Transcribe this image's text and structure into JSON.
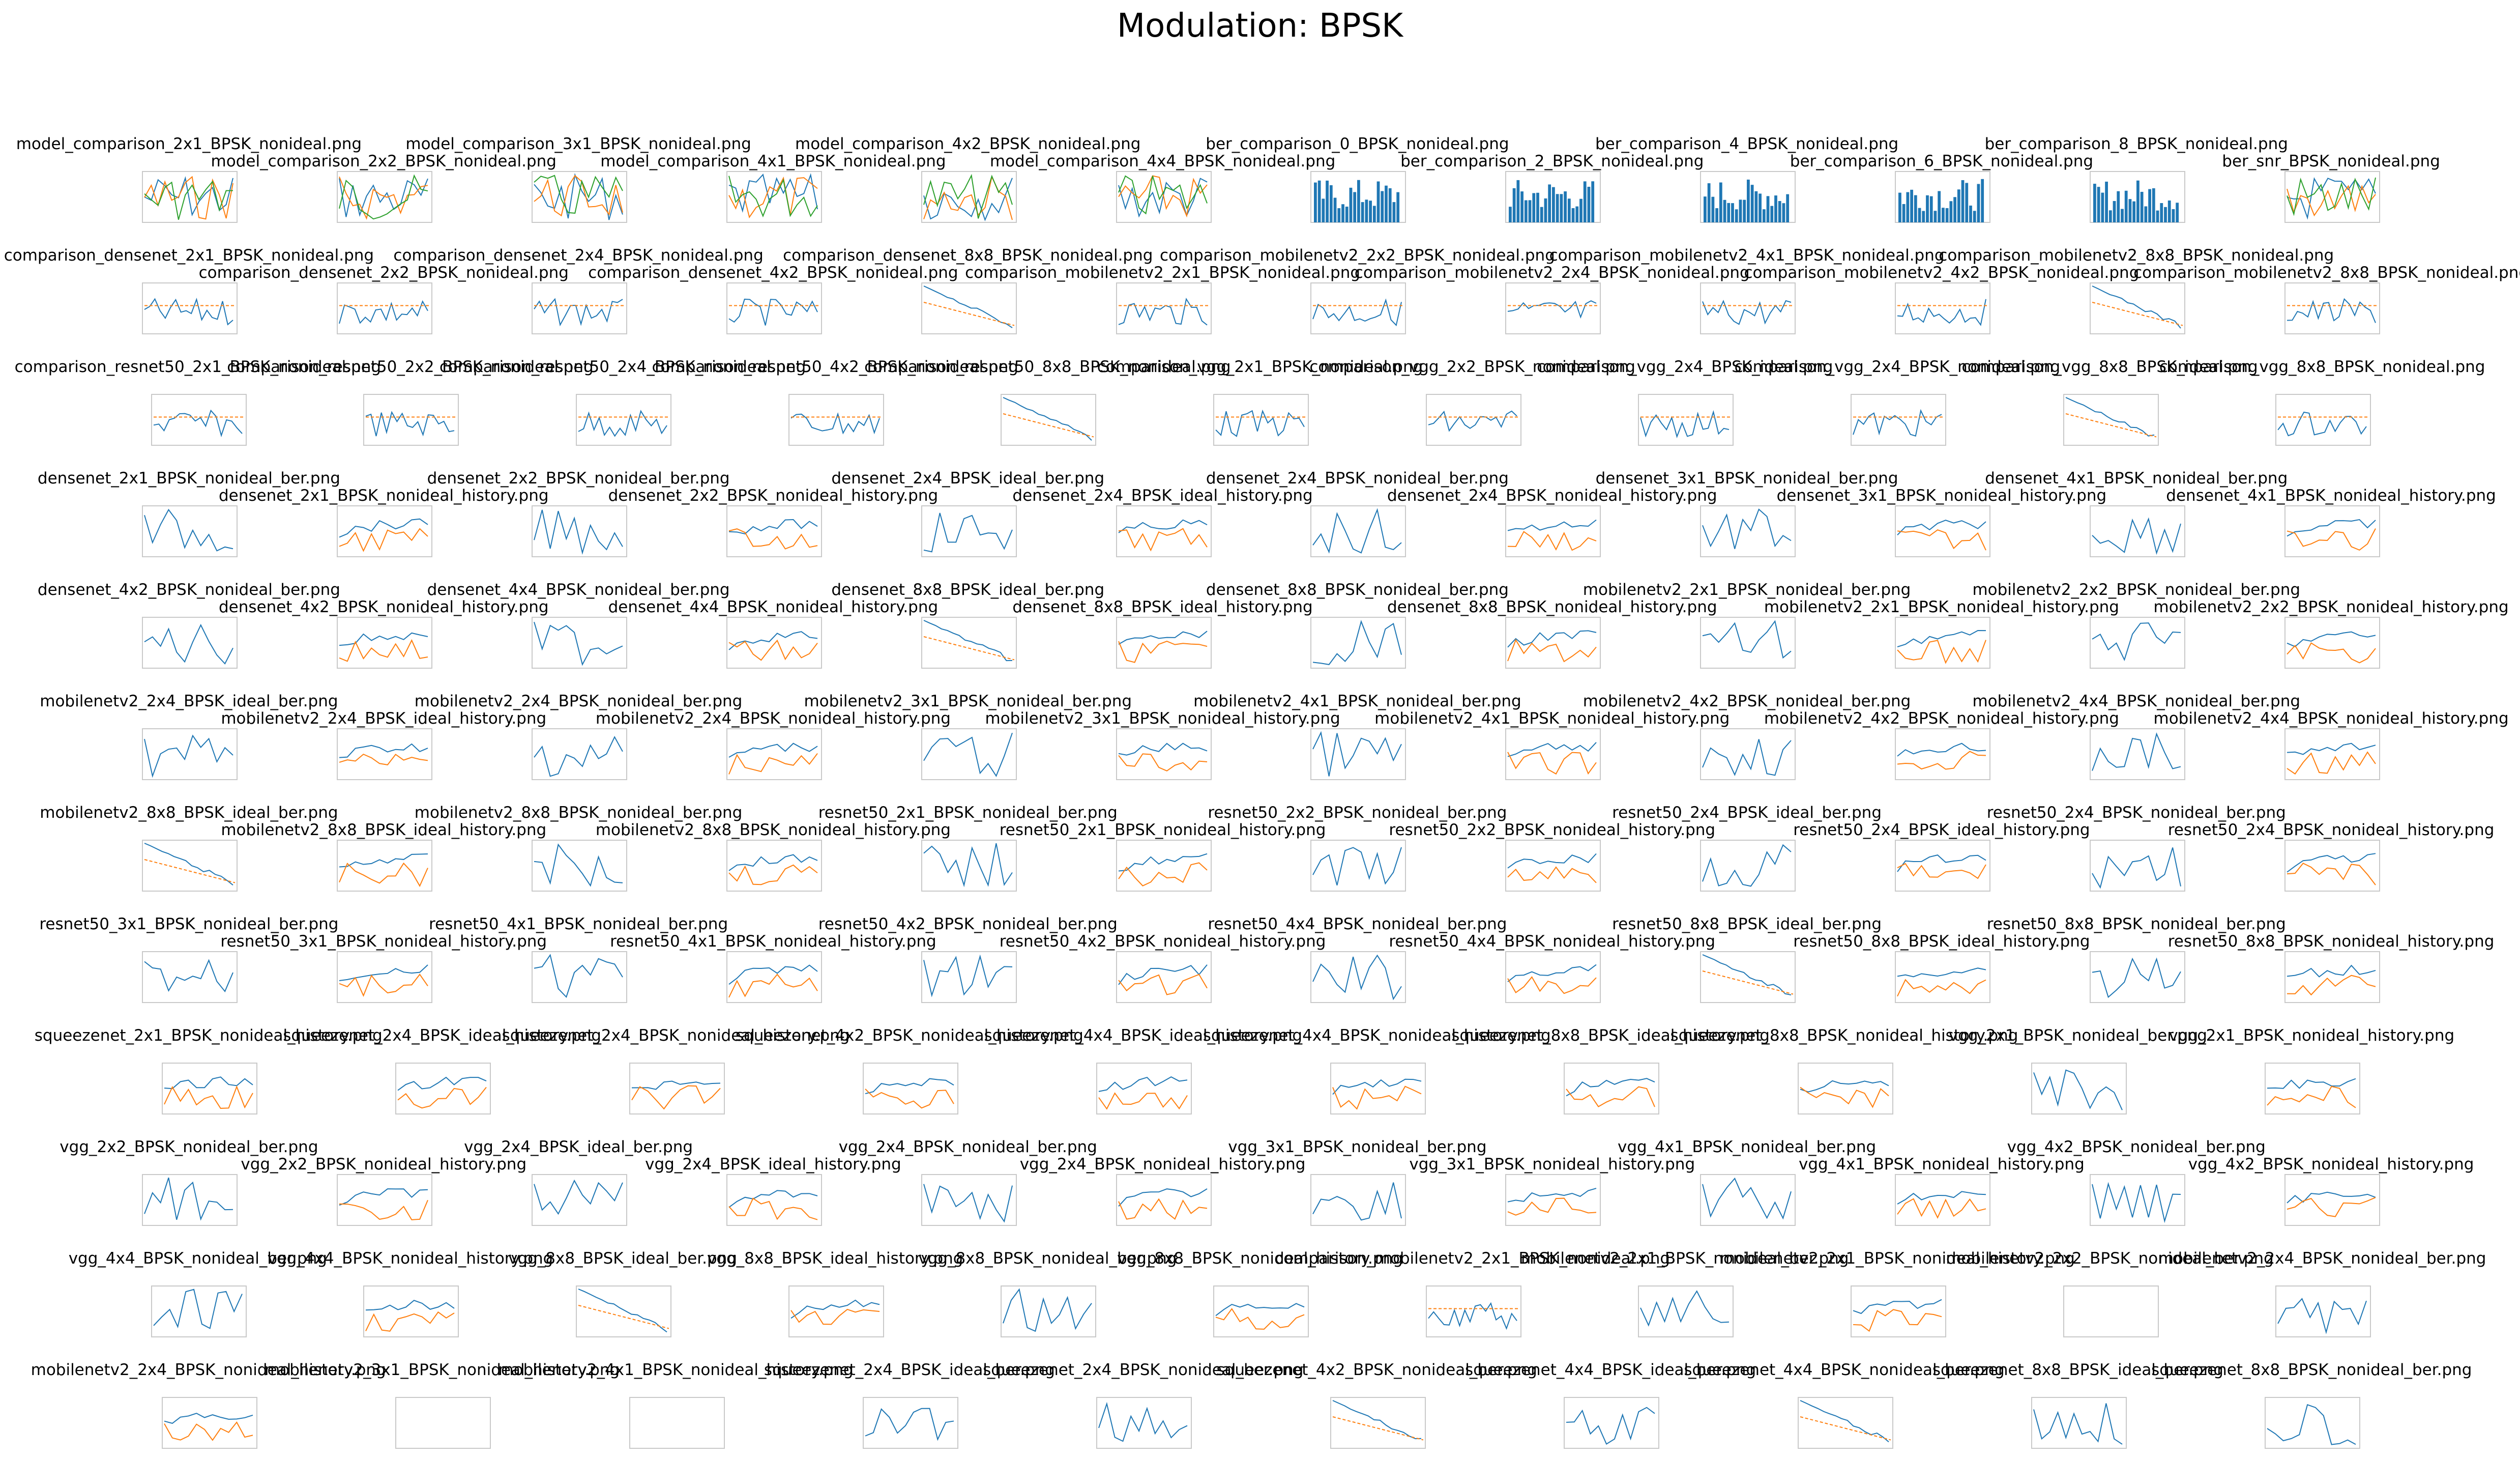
{
  "title": "Modulation: BPSK",
  "rows": [
    {
      "labels": [
        "model_comparison_2x1_BPSK_nonideal.png",
        "model_comparison_2x2_BPSK_nonideal.png",
        "model_comparison_3x1_BPSK_nonideal.png",
        "model_comparison_4x1_BPSK_nonideal.png",
        "model_comparison_4x2_BPSK_nonideal.png",
        "model_comparison_4x4_BPSK_nonideal.png",
        "ber_comparison_0_BPSK_nonideal.png",
        "ber_comparison_2_BPSK_nonideal.png",
        "ber_comparison_4_BPSK_nonideal.png",
        "ber_comparison_6_BPSK_nonideal.png",
        "ber_comparison_8_BPSK_nonideal.png",
        "ber_snr_BPSK_nonideal.png"
      ],
      "thumbs": [
        "multiline",
        "multiline",
        "multiline",
        "multiline",
        "multiline",
        "multiline",
        "bars",
        "bars",
        "bars",
        "bars",
        "bars",
        "multiline"
      ]
    },
    {
      "labels": [
        "comparison_densenet_2x1_BPSK_nonideal.png",
        "comparison_densenet_2x2_BPSK_nonideal.png",
        "comparison_densenet_2x4_BPSK_nonideal.png",
        "comparison_densenet_4x2_BPSK_nonideal.png",
        "comparison_densenet_8x8_BPSK_nonideal.png",
        "comparison_mobilenetv2_2x1_BPSK_nonideal.png",
        "comparison_mobilenetv2_2x2_BPSK_nonideal.png",
        "comparison_mobilenetv2_2x4_BPSK_nonideal.png",
        "comparison_mobilenetv2_4x1_BPSK_nonideal.png",
        "comparison_mobilenetv2_4x2_BPSK_nonideal.png",
        "comparison_mobilenetv2_8x8_BPSK_nonideal.png",
        "comparison_mobilenetv2_8x8_BPSK_nonideal.png"
      ],
      "thumbs": [
        "line",
        "line",
        "line",
        "line",
        "decay",
        "line",
        "line",
        "line",
        "line",
        "line",
        "decay",
        "line"
      ]
    },
    {
      "labels": [
        "comparison_resnet50_2x1_BPSK_nonideal.png",
        "comparison_resnet50_2x2_BPSK_nonideal.png",
        "comparison_resnet50_2x4_BPSK_nonideal.png",
        "comparison_resnet50_4x2_BPSK_nonideal.png",
        "comparison_resnet50_8x8_BPSK_nonideal.png",
        "comparison_vgg_2x1_BPSK_nonideal.png",
        "comparison_vgg_2x2_BPSK_nonideal.png",
        "comparison_vgg_2x4_BPSK_ideal.png",
        "comparison_vgg_2x4_BPSK_nonideal.png",
        "comparison_vgg_8x8_BPSK_ideal.png",
        "comparison_vgg_8x8_BPSK_nonideal.png"
      ],
      "thumbs": [
        "line",
        "line",
        "line",
        "line",
        "decay",
        "line",
        "line",
        "line",
        "line",
        "decay",
        "line"
      ]
    },
    {
      "labels": [
        "densenet_2x1_BPSK_nonideal_ber.png",
        "densenet_2x1_BPSK_nonideal_history.png",
        "densenet_2x2_BPSK_nonideal_ber.png",
        "densenet_2x2_BPSK_nonideal_history.png",
        "densenet_2x4_BPSK_ideal_ber.png",
        "densenet_2x4_BPSK_ideal_history.png",
        "densenet_2x4_BPSK_nonideal_ber.png",
        "densenet_2x4_BPSK_nonideal_history.png",
        "densenet_3x1_BPSK_nonideal_ber.png",
        "densenet_3x1_BPSK_nonideal_history.png",
        "densenet_4x1_BPSK_nonideal_ber.png",
        "densenet_4x1_BPSK_nonideal_history.png"
      ],
      "thumbs": [
        "ber",
        "history",
        "ber",
        "history",
        "ber",
        "history",
        "ber",
        "history",
        "ber",
        "history",
        "ber",
        "history"
      ]
    },
    {
      "labels": [
        "densenet_4x2_BPSK_nonideal_ber.png",
        "densenet_4x2_BPSK_nonideal_history.png",
        "densenet_4x4_BPSK_nonideal_ber.png",
        "densenet_4x4_BPSK_nonideal_history.png",
        "densenet_8x8_BPSK_ideal_ber.png",
        "densenet_8x8_BPSK_ideal_history.png",
        "densenet_8x8_BPSK_nonideal_ber.png",
        "densenet_8x8_BPSK_nonideal_history.png",
        "mobilenetv2_2x1_BPSK_nonideal_ber.png",
        "mobilenetv2_2x1_BPSK_nonideal_history.png",
        "mobilenetv2_2x2_BPSK_nonideal_ber.png",
        "mobilenetv2_2x2_BPSK_nonideal_history.png"
      ],
      "thumbs": [
        "ber",
        "history",
        "ber",
        "history",
        "decay",
        "history",
        "ber",
        "history",
        "ber",
        "history",
        "ber",
        "history"
      ]
    },
    {
      "labels": [
        "mobilenetv2_2x4_BPSK_ideal_ber.png",
        "mobilenetv2_2x4_BPSK_ideal_history.png",
        "mobilenetv2_2x4_BPSK_nonideal_ber.png",
        "mobilenetv2_2x4_BPSK_nonideal_history.png",
        "mobilenetv2_3x1_BPSK_nonideal_ber.png",
        "mobilenetv2_3x1_BPSK_nonideal_history.png",
        "mobilenetv2_4x1_BPSK_nonideal_ber.png",
        "mobilenetv2_4x1_BPSK_nonideal_history.png",
        "mobilenetv2_4x2_BPSK_nonideal_ber.png",
        "mobilenetv2_4x2_BPSK_nonideal_history.png",
        "mobilenetv2_4x4_BPSK_nonideal_ber.png",
        "mobilenetv2_4x4_BPSK_nonideal_history.png"
      ],
      "thumbs": [
        "ber",
        "history",
        "ber",
        "history",
        "ber",
        "history",
        "ber",
        "history",
        "ber",
        "history",
        "ber",
        "history"
      ]
    },
    {
      "labels": [
        "mobilenetv2_8x8_BPSK_ideal_ber.png",
        "mobilenetv2_8x8_BPSK_ideal_history.png",
        "mobilenetv2_8x8_BPSK_nonideal_ber.png",
        "mobilenetv2_8x8_BPSK_nonideal_history.png",
        "resnet50_2x1_BPSK_nonideal_ber.png",
        "resnet50_2x1_BPSK_nonideal_history.png",
        "resnet50_2x2_BPSK_nonideal_ber.png",
        "resnet50_2x2_BPSK_nonideal_history.png",
        "resnet50_2x4_BPSK_ideal_ber.png",
        "resnet50_2x4_BPSK_ideal_history.png",
        "resnet50_2x4_BPSK_nonideal_ber.png",
        "resnet50_2x4_BPSK_nonideal_history.png"
      ],
      "thumbs": [
        "decay",
        "history",
        "ber",
        "history",
        "ber",
        "history",
        "ber",
        "history",
        "ber",
        "history",
        "ber",
        "history"
      ]
    },
    {
      "labels": [
        "resnet50_3x1_BPSK_nonideal_ber.png",
        "resnet50_3x1_BPSK_nonideal_history.png",
        "resnet50_4x1_BPSK_nonideal_ber.png",
        "resnet50_4x1_BPSK_nonideal_history.png",
        "resnet50_4x2_BPSK_nonideal_ber.png",
        "resnet50_4x2_BPSK_nonideal_history.png",
        "resnet50_4x4_BPSK_nonideal_ber.png",
        "resnet50_4x4_BPSK_nonideal_history.png",
        "resnet50_8x8_BPSK_ideal_ber.png",
        "resnet50_8x8_BPSK_ideal_history.png",
        "resnet50_8x8_BPSK_nonideal_ber.png",
        "resnet50_8x8_BPSK_nonideal_history.png"
      ],
      "thumbs": [
        "ber",
        "history",
        "ber",
        "history",
        "ber",
        "history",
        "ber",
        "history",
        "decay",
        "history",
        "ber",
        "history"
      ]
    },
    {
      "labels": [
        "squeezenet_2x1_BPSK_nonideal_history.png",
        "squeezenet_2x4_BPSK_ideal_history.png",
        "squeezenet_2x4_BPSK_nonideal_history.png",
        "squeezenet_4x2_BPSK_nonideal_history.png",
        "squeezenet_4x4_BPSK_ideal_history.png",
        "squeezenet_4x4_BPSK_nonideal_history.png",
        "squeezenet_8x8_BPSK_ideal_history.png",
        "squeezenet_8x8_BPSK_nonideal_history.png",
        "vgg_2x1_BPSK_nonideal_ber.png",
        "vgg_2x1_BPSK_nonideal_history.png"
      ],
      "thumbs": [
        "history",
        "history",
        "history",
        "history",
        "history",
        "history",
        "history",
        "history",
        "ber",
        "history"
      ]
    },
    {
      "labels": [
        "vgg_2x2_BPSK_nonideal_ber.png",
        "vgg_2x2_BPSK_nonideal_history.png",
        "vgg_2x4_BPSK_ideal_ber.png",
        "vgg_2x4_BPSK_ideal_history.png",
        "vgg_2x4_BPSK_nonideal_ber.png",
        "vgg_2x4_BPSK_nonideal_history.png",
        "vgg_3x1_BPSK_nonideal_ber.png",
        "vgg_3x1_BPSK_nonideal_history.png",
        "vgg_4x1_BPSK_nonideal_ber.png",
        "vgg_4x1_BPSK_nonideal_history.png",
        "vgg_4x2_BPSK_nonideal_ber.png",
        "vgg_4x2_BPSK_nonideal_history.png"
      ],
      "thumbs": [
        "ber",
        "history",
        "ber",
        "history",
        "ber",
        "history",
        "ber",
        "history",
        "ber",
        "history",
        "ber",
        "history"
      ]
    },
    {
      "labels": [
        "vgg_4x4_BPSK_nonideal_ber.png",
        "vgg_4x4_BPSK_nonideal_history.png",
        "vgg_8x8_BPSK_ideal_ber.png",
        "vgg_8x8_BPSK_ideal_history.png",
        "vgg_8x8_BPSK_nonideal_ber.png",
        "vgg_8x8_BPSK_nonideal_history.png",
        "comparison_mobilenetv2_2x1_BPSK_nonideal.png",
        "mobilenetv2_2x1_BPSK_nonideal_ber.png",
        "mobilenetv2_2x1_BPSK_nonideal_history.png",
        "mobilenetv2_2x2_BPSK_nonideal_ber.png",
        "mobilenetv2_2x4_BPSK_nonideal_ber.png"
      ],
      "thumbs": [
        "ber",
        "history",
        "decay",
        "history",
        "ber",
        "history",
        "line",
        "ber",
        "history",
        "blank",
        "ber"
      ]
    },
    {
      "labels": [
        "mobilenetv2_2x4_BPSK_nonideal_history.png",
        "mobilenetv2_3x1_BPSK_nonideal_history.png",
        "mobilenetv2_4x1_BPSK_nonideal_history.png",
        "squeezenet_2x4_BPSK_ideal_ber.png",
        "squeezenet_2x4_BPSK_nonideal_ber.png",
        "squeezenet_4x2_BPSK_nonideal_ber.png",
        "squeezenet_4x4_BPSK_ideal_ber.png",
        "squeezenet_4x4_BPSK_nonideal_ber.png",
        "squeezenet_8x8_BPSK_ideal_ber.png",
        "squeezenet_8x8_BPSK_nonideal_ber.png"
      ],
      "thumbs": [
        "history",
        "blank",
        "blank",
        "ber",
        "ber",
        "decay",
        "ber",
        "decay",
        "ber",
        "ber"
      ]
    }
  ],
  "colors": {
    "series_blue": "#1f77b4",
    "series_orange": "#ff7f0e",
    "series_green": "#2ca02c",
    "axis": "#c9c9c9"
  }
}
